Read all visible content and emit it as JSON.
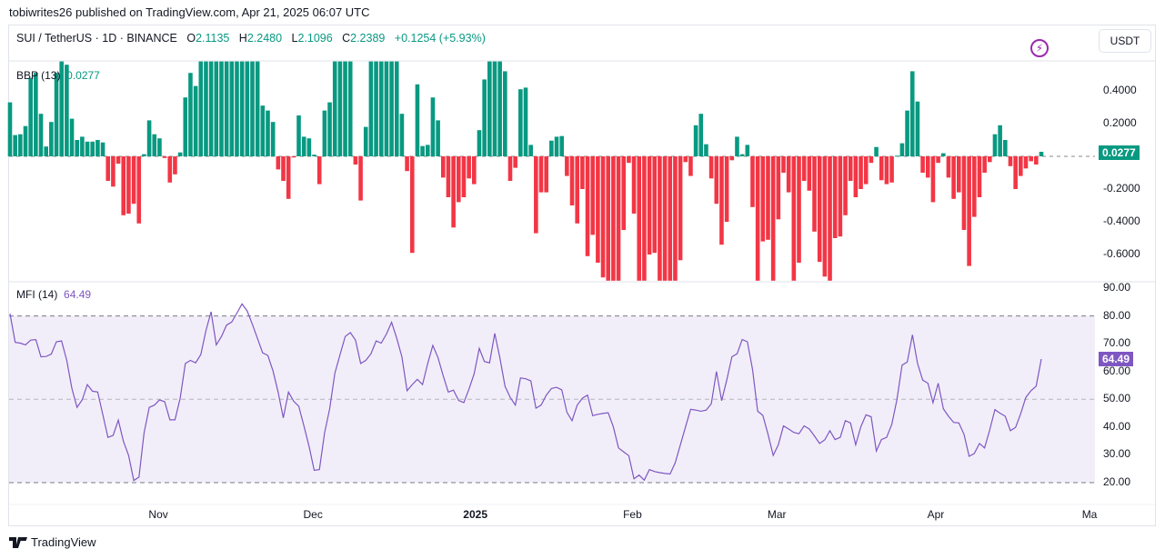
{
  "header": {
    "published": "tobiwrites26 published on TradingView.com, Apr 21, 2025 06:07 UTC",
    "symbol": "SUI / TetherUS · 1D · BINANCE",
    "o_label": "O",
    "o": "2.1135",
    "h_label": "H",
    "h": "2.2480",
    "l_label": "L",
    "l": "2.1096",
    "c_label": "C",
    "c": "2.2389",
    "change": "+0.1254 (+5.93%)",
    "currency_button": "USDT"
  },
  "footer": {
    "brand": "TradingView"
  },
  "colors": {
    "up": "#089981",
    "down": "#F23645",
    "mfi_line": "#7E57C2",
    "mfi_tag": "#7E57C2"
  },
  "chart_data": [
    {
      "type": "bar",
      "title": "BBP (13)",
      "last_value": "0.0277",
      "ylim": [
        -0.76,
        0.58
      ],
      "yticks": [
        "0.4000",
        "0.2000",
        "-0.2000",
        "-0.4000",
        "-0.6000"
      ],
      "ytick_values": [
        0.4,
        0.2,
        -0.2,
        -0.4,
        -0.6
      ],
      "values": [
        0.33,
        0.13,
        0.135,
        0.185,
        0.48,
        0.51,
        0.26,
        0.06,
        0.21,
        0.51,
        0.58,
        0.56,
        0.23,
        0.1,
        0.12,
        0.09,
        0.09,
        0.1,
        0.085,
        -0.15,
        -0.185,
        -0.045,
        -0.36,
        -0.35,
        -0.29,
        -0.41,
        0.013,
        0.22,
        0.135,
        0.11,
        -0.01,
        -0.16,
        -0.11,
        0.024,
        0.36,
        0.51,
        0.43,
        0.58,
        0.58,
        0.58,
        0.58,
        0.58,
        0.58,
        0.58,
        0.58,
        0.58,
        0.58,
        0.58,
        0.58,
        0.31,
        0.28,
        0.21,
        -0.08,
        -0.15,
        -0.26,
        -0.007,
        0.25,
        0.12,
        0.11,
        0.01,
        -0.17,
        0.28,
        0.33,
        0.58,
        0.58,
        0.58,
        0.58,
        -0.05,
        -0.27,
        0.18,
        0.58,
        0.58,
        0.58,
        0.58,
        0.58,
        0.58,
        0.26,
        -0.09,
        -0.59,
        0.44,
        0.063,
        0.07,
        0.36,
        0.22,
        -0.13,
        -0.25,
        -0.435,
        -0.28,
        -0.25,
        -0.135,
        -0.17,
        0.16,
        0.47,
        0.58,
        0.58,
        0.58,
        0.52,
        -0.15,
        -0.07,
        0.41,
        0.42,
        0.07,
        -0.47,
        -0.22,
        -0.22,
        0.096,
        0.12,
        0.124,
        -0.12,
        -0.3,
        -0.41,
        -0.2,
        -0.61,
        -0.48,
        -0.65,
        -0.74,
        -0.76,
        -0.76,
        -0.76,
        -0.45,
        -0.04,
        -0.35,
        -0.76,
        -0.76,
        -0.6,
        -0.59,
        -0.76,
        -0.76,
        -0.76,
        -0.76,
        -0.635,
        -0.035,
        -0.12,
        0.19,
        0.26,
        0.074,
        -0.135,
        -0.29,
        -0.54,
        -0.4,
        -0.024,
        0.12,
        0.013,
        0.07,
        -0.31,
        -0.76,
        -0.52,
        -0.51,
        -0.76,
        -0.385,
        -0.1,
        -0.22,
        -0.76,
        -0.65,
        -0.15,
        -0.21,
        -0.46,
        -0.645,
        -0.735,
        -0.76,
        -0.5,
        -0.49,
        -0.36,
        -0.15,
        -0.25,
        -0.2,
        -0.17,
        -0.04,
        0.057,
        -0.146,
        -0.17,
        -0.16,
        0.004,
        0.08,
        0.28,
        0.52,
        0.335,
        -0.1,
        -0.13,
        -0.28,
        -0.04,
        0.019,
        -0.13,
        -0.26,
        -0.22,
        -0.45,
        -0.67,
        -0.37,
        -0.25,
        -0.1,
        -0.035,
        0.135,
        0.19,
        0.1,
        -0.06,
        -0.2,
        -0.12,
        -0.074,
        -0.03,
        -0.05,
        0.0277
      ]
    },
    {
      "type": "line",
      "title": "MFI (14)",
      "last_value": "64.49",
      "ylim": [
        20,
        90
      ],
      "band": [
        20,
        80
      ],
      "midline": 50,
      "yticks": [
        "90.00",
        "80.00",
        "70.00",
        "60.00",
        "50.00",
        "40.00",
        "30.00",
        "20.00"
      ],
      "ytick_values": [
        90,
        80,
        70,
        60,
        50,
        40,
        30,
        20
      ],
      "values": [
        80.8,
        70.5,
        70.2,
        69.6,
        71.3,
        71.5,
        65.3,
        65.4,
        66.3,
        70.7,
        71,
        64,
        54,
        47.1,
        49.8,
        55.3,
        52.9,
        52.6,
        44.4,
        36.3,
        37,
        42.5,
        34.9,
        29.8,
        20.8,
        22,
        37.9,
        47.1,
        47.9,
        49.8,
        49.1,
        42.6,
        42.6,
        50.4,
        62.9,
        64,
        63.1,
        66.1,
        74.8,
        81.5,
        69.6,
        72.6,
        76.7,
        77.8,
        81,
        84.3,
        81.8,
        77,
        71.8,
        66.7,
        65.8,
        60.2,
        52.6,
        43.3,
        52.6,
        49.3,
        47.5,
        40.4,
        33,
        24.4,
        24.7,
        37.9,
        46.6,
        59.4,
        66.1,
        72.6,
        74,
        71.3,
        62.9,
        64,
        66.4,
        71,
        70.2,
        73.5,
        77.7,
        71.9,
        65.3,
        53.1,
        55.3,
        57.2,
        55.3,
        62.9,
        69.4,
        65,
        58.5,
        52.6,
        53.3,
        49.6,
        48.8,
        53.6,
        59.1,
        68.3,
        63.6,
        63.1,
        73.7,
        65,
        54.7,
        50.7,
        47.9,
        57.7,
        57.4,
        56.6,
        46.8,
        47.9,
        51.5,
        53.9,
        54.3,
        53.4,
        45.3,
        42.3,
        47.9,
        50.4,
        51.5,
        44.1,
        44.6,
        44.9,
        45.2,
        40.1,
        32.5,
        31.1,
        29.7,
        21.4,
        22.7,
        20.9,
        24.7,
        24,
        23.6,
        23.3,
        23.1,
        27.1,
        33.6,
        40.1,
        46.4,
        46.1,
        45.7,
        46.1,
        48.4,
        60,
        49.5,
        56.9,
        65.3,
        66.4,
        71.5,
        70.7,
        60.7,
        45.7,
        44.2,
        37.4,
        29.8,
        33.6,
        40.4,
        39.3,
        38.1,
        37.6,
        40.4,
        39.3,
        36.8,
        34.1,
        35.4,
        38.7,
        35.5,
        36.3,
        42.3,
        41.5,
        33.6,
        40.1,
        44.4,
        43.7,
        31.4,
        35.5,
        36.3,
        41,
        49.8,
        62.3,
        63.4,
        73.2,
        62.9,
        56.9,
        55.8,
        48.8,
        55.8,
        46.6,
        43.9,
        41.7,
        41.5,
        37.4,
        29.5,
        30.5,
        34.1,
        32.5,
        39,
        46.3,
        45,
        43.9,
        38.7,
        39.9,
        44.8,
        50.7,
        53.1,
        54.7,
        64.49
      ]
    }
  ],
  "time_axis": {
    "labels": [
      "Nov",
      "Dec",
      "2025",
      "Feb",
      "Mar",
      "Apr",
      "Ma"
    ],
    "label_bar_index": [
      29,
      59,
      90,
      121,
      149,
      180,
      210
    ],
    "bold": [
      false,
      false,
      true,
      false,
      false,
      false,
      false
    ]
  }
}
